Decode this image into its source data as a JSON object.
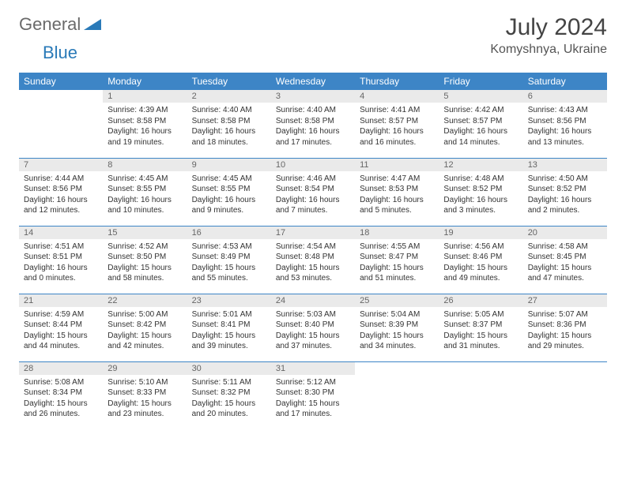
{
  "brand": {
    "text1": "General",
    "text2": "Blue",
    "triangle_color": "#2a7ab8"
  },
  "title": "July 2024",
  "location": "Komyshnya, Ukraine",
  "header_bg": "#3d85c6",
  "daynum_bg": "#eaeaea",
  "border_color": "#3d85c6",
  "dow": [
    "Sunday",
    "Monday",
    "Tuesday",
    "Wednesday",
    "Thursday",
    "Friday",
    "Saturday"
  ],
  "fonts": {
    "title_size": 30,
    "location_size": 16,
    "dow_size": 12,
    "daynum_size": 11,
    "body_size": 10
  },
  "weeks": [
    [
      null,
      {
        "n": "1",
        "sr": "4:39 AM",
        "ss": "8:58 PM",
        "dl": "16 hours and 19 minutes."
      },
      {
        "n": "2",
        "sr": "4:40 AM",
        "ss": "8:58 PM",
        "dl": "16 hours and 18 minutes."
      },
      {
        "n": "3",
        "sr": "4:40 AM",
        "ss": "8:58 PM",
        "dl": "16 hours and 17 minutes."
      },
      {
        "n": "4",
        "sr": "4:41 AM",
        "ss": "8:57 PM",
        "dl": "16 hours and 16 minutes."
      },
      {
        "n": "5",
        "sr": "4:42 AM",
        "ss": "8:57 PM",
        "dl": "16 hours and 14 minutes."
      },
      {
        "n": "6",
        "sr": "4:43 AM",
        "ss": "8:56 PM",
        "dl": "16 hours and 13 minutes."
      }
    ],
    [
      {
        "n": "7",
        "sr": "4:44 AM",
        "ss": "8:56 PM",
        "dl": "16 hours and 12 minutes."
      },
      {
        "n": "8",
        "sr": "4:45 AM",
        "ss": "8:55 PM",
        "dl": "16 hours and 10 minutes."
      },
      {
        "n": "9",
        "sr": "4:45 AM",
        "ss": "8:55 PM",
        "dl": "16 hours and 9 minutes."
      },
      {
        "n": "10",
        "sr": "4:46 AM",
        "ss": "8:54 PM",
        "dl": "16 hours and 7 minutes."
      },
      {
        "n": "11",
        "sr": "4:47 AM",
        "ss": "8:53 PM",
        "dl": "16 hours and 5 minutes."
      },
      {
        "n": "12",
        "sr": "4:48 AM",
        "ss": "8:52 PM",
        "dl": "16 hours and 3 minutes."
      },
      {
        "n": "13",
        "sr": "4:50 AM",
        "ss": "8:52 PM",
        "dl": "16 hours and 2 minutes."
      }
    ],
    [
      {
        "n": "14",
        "sr": "4:51 AM",
        "ss": "8:51 PM",
        "dl": "16 hours and 0 minutes."
      },
      {
        "n": "15",
        "sr": "4:52 AM",
        "ss": "8:50 PM",
        "dl": "15 hours and 58 minutes."
      },
      {
        "n": "16",
        "sr": "4:53 AM",
        "ss": "8:49 PM",
        "dl": "15 hours and 55 minutes."
      },
      {
        "n": "17",
        "sr": "4:54 AM",
        "ss": "8:48 PM",
        "dl": "15 hours and 53 minutes."
      },
      {
        "n": "18",
        "sr": "4:55 AM",
        "ss": "8:47 PM",
        "dl": "15 hours and 51 minutes."
      },
      {
        "n": "19",
        "sr": "4:56 AM",
        "ss": "8:46 PM",
        "dl": "15 hours and 49 minutes."
      },
      {
        "n": "20",
        "sr": "4:58 AM",
        "ss": "8:45 PM",
        "dl": "15 hours and 47 minutes."
      }
    ],
    [
      {
        "n": "21",
        "sr": "4:59 AM",
        "ss": "8:44 PM",
        "dl": "15 hours and 44 minutes."
      },
      {
        "n": "22",
        "sr": "5:00 AM",
        "ss": "8:42 PM",
        "dl": "15 hours and 42 minutes."
      },
      {
        "n": "23",
        "sr": "5:01 AM",
        "ss": "8:41 PM",
        "dl": "15 hours and 39 minutes."
      },
      {
        "n": "24",
        "sr": "5:03 AM",
        "ss": "8:40 PM",
        "dl": "15 hours and 37 minutes."
      },
      {
        "n": "25",
        "sr": "5:04 AM",
        "ss": "8:39 PM",
        "dl": "15 hours and 34 minutes."
      },
      {
        "n": "26",
        "sr": "5:05 AM",
        "ss": "8:37 PM",
        "dl": "15 hours and 31 minutes."
      },
      {
        "n": "27",
        "sr": "5:07 AM",
        "ss": "8:36 PM",
        "dl": "15 hours and 29 minutes."
      }
    ],
    [
      {
        "n": "28",
        "sr": "5:08 AM",
        "ss": "8:34 PM",
        "dl": "15 hours and 26 minutes."
      },
      {
        "n": "29",
        "sr": "5:10 AM",
        "ss": "8:33 PM",
        "dl": "15 hours and 23 minutes."
      },
      {
        "n": "30",
        "sr": "5:11 AM",
        "ss": "8:32 PM",
        "dl": "15 hours and 20 minutes."
      },
      {
        "n": "31",
        "sr": "5:12 AM",
        "ss": "8:30 PM",
        "dl": "15 hours and 17 minutes."
      },
      null,
      null,
      null
    ]
  ]
}
